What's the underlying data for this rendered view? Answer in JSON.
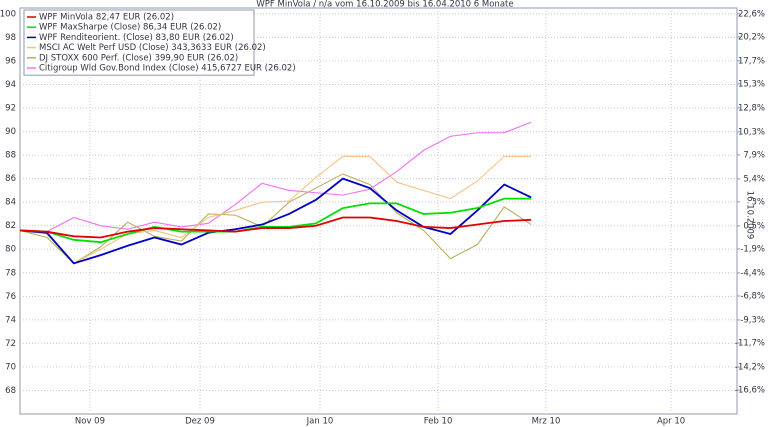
{
  "chart_data": {
    "type": "line",
    "title": "WPF MinVola / n/a vom 16.10.2009 bis 16.04.2010 6 Monate",
    "annotation": "16.10.2009",
    "x": [
      0,
      1,
      2,
      3,
      4,
      5,
      6,
      7,
      8,
      9,
      10,
      11,
      12,
      13,
      14,
      15,
      16,
      17,
      18,
      19
    ],
    "xlim": [
      0,
      26.65
    ],
    "xticks": [
      {
        "value": 2.6,
        "label": "Nov 09"
      },
      {
        "value": 6.69,
        "label": "Dez 09"
      },
      {
        "value": 11.15,
        "label": "Jan 10"
      },
      {
        "value": 15.54,
        "label": "Feb 10"
      },
      {
        "value": 19.55,
        "label": "Mrz 10"
      },
      {
        "value": 24.2,
        "label": "Apr 10"
      }
    ],
    "ylim": [
      66,
      100.5
    ],
    "yticks": [
      68,
      70,
      72,
      74,
      76,
      78,
      80,
      82,
      84,
      86,
      88,
      90,
      92,
      94,
      96,
      98,
      100
    ],
    "y2lim": [
      -19.1,
      23.2
    ],
    "y2ticks": [
      {
        "value": 22.6,
        "label": "22,6%"
      },
      {
        "value": 20.2,
        "label": "20,2%"
      },
      {
        "value": 17.7,
        "label": "17,7%"
      },
      {
        "value": 15.3,
        "label": "15,3%"
      },
      {
        "value": 12.8,
        "label": "12,8%"
      },
      {
        "value": 10.3,
        "label": "10,3%"
      },
      {
        "value": 7.9,
        "label": "7,9%"
      },
      {
        "value": 5.4,
        "label": "5,4%"
      },
      {
        "value": 3,
        "label": "3%"
      },
      {
        "value": 0.5,
        "label": "0,5%"
      },
      {
        "value": -1.9,
        "label": "-1,9%"
      },
      {
        "value": -4.4,
        "label": "-4,4%"
      },
      {
        "value": -6.8,
        "label": "-6,8%"
      },
      {
        "value": -9.3,
        "label": "-9,3%"
      },
      {
        "value": -11.7,
        "label": "-11,7%"
      },
      {
        "value": -14.2,
        "label": "-14,2%"
      },
      {
        "value": -16.6,
        "label": "-16,6%"
      }
    ],
    "grid": true,
    "legend": "top-left",
    "series": [
      {
        "name": "WPF MinVola 82,47 EUR (26.02)",
        "color": "#e00000",
        "values": [
          81.6,
          81.5,
          81.1,
          81.0,
          81.5,
          81.8,
          81.7,
          81.6,
          81.5,
          81.8,
          81.8,
          82.0,
          82.7,
          82.7,
          82.4,
          81.9,
          81.8,
          82.1,
          82.4,
          82.5
        ]
      },
      {
        "name": "WPF MaxSharpe (Close) 86,34 EUR (26.02)",
        "color": "#00e000",
        "values": [
          81.6,
          81.5,
          80.8,
          80.6,
          81.3,
          81.9,
          81.5,
          81.5,
          81.5,
          81.9,
          81.9,
          82.2,
          83.5,
          83.9,
          83.9,
          83.0,
          83.1,
          83.5,
          84.3,
          84.3
        ]
      },
      {
        "name": "WPF Renditeorient. (Close) 83,80 EUR (26.02)",
        "color": "#0000c0",
        "values": [
          81.6,
          81.4,
          78.8,
          79.5,
          80.3,
          81.0,
          80.4,
          81.4,
          81.7,
          82.1,
          83.0,
          84.2,
          86.0,
          85.2,
          83.3,
          81.9,
          81.3,
          83.3,
          85.5,
          84.4
        ]
      },
      {
        "name": "MSCI AC Welt Perf USD (Close) 343,3633 EUR (26.02)",
        "color": "#f8c080",
        "values": [
          81.6,
          81.3,
          78.8,
          80.0,
          81.3,
          81.6,
          81.0,
          82.7,
          83.3,
          84.0,
          84.1,
          86.1,
          87.9,
          87.9,
          85.7,
          85.0,
          84.3,
          85.8,
          87.9,
          87.9
        ]
      },
      {
        "name": "DJ STOXX 600 Perf. (Close) 399,90 EUR (26.02)",
        "color": "#b8b060",
        "values": [
          81.6,
          81.0,
          78.8,
          80.2,
          82.3,
          81.1,
          80.7,
          83.0,
          82.9,
          81.9,
          84.0,
          85.2,
          86.4,
          85.5,
          83.1,
          81.6,
          79.2,
          80.4,
          83.6,
          82.1
        ]
      },
      {
        "name": "Citigroup Wld Gov.Bond Index (Close) 415,6727 EUR (26.02)",
        "color": "#f070f0",
        "values": [
          81.6,
          81.5,
          82.7,
          82.0,
          81.7,
          82.3,
          81.9,
          82.2,
          83.8,
          85.6,
          85.0,
          84.8,
          84.6,
          85.1,
          86.6,
          88.4,
          89.6,
          89.9,
          89.9,
          90.8
        ]
      }
    ]
  }
}
